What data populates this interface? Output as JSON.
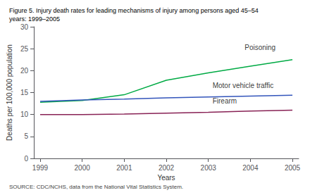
{
  "chart_data": {
    "type": "line",
    "title": "Figure 5. Injury death rates for leading mechanisms of injury among persons aged 45–54\nyears: 1999–2005",
    "source": "SOURCE: CDC/NCHS, data from the National Vital Statistics System.",
    "xlabel": "Years",
    "ylabel": "Deaths per 100,000 population",
    "x": [
      1999,
      2000,
      2001,
      2002,
      2003,
      2004,
      2005
    ],
    "series": [
      {
        "name": "Poisoning",
        "color": "#00aa44",
        "values": [
          12.8,
          13.2,
          14.5,
          17.8,
          19.5,
          21.0,
          22.5
        ]
      },
      {
        "name": "Motor vehicle traffic",
        "color": "#3355bb",
        "values": [
          13.0,
          13.3,
          13.5,
          13.8,
          14.0,
          14.2,
          14.4
        ]
      },
      {
        "name": "Firearm",
        "color": "#882255",
        "values": [
          10.0,
          10.0,
          10.1,
          10.3,
          10.5,
          10.8,
          11.0
        ]
      }
    ],
    "annotations": [
      {
        "text": "Poisoning",
        "x": 2004.6,
        "y": 24.5
      },
      {
        "text": "Motor vehicle traffic",
        "x": 2003.1,
        "y": 15.8
      },
      {
        "text": "Firearm",
        "x": 2003.1,
        "y": 12.2
      }
    ],
    "xlim": [
      1998.85,
      2005.15
    ],
    "xticks": [
      1999,
      2000,
      2001,
      2002,
      2003,
      2004,
      2005
    ],
    "ylim": [
      0,
      30
    ],
    "yticks": [
      0,
      5,
      10,
      15,
      20,
      25,
      30
    ],
    "grid": false,
    "legend": false
  }
}
